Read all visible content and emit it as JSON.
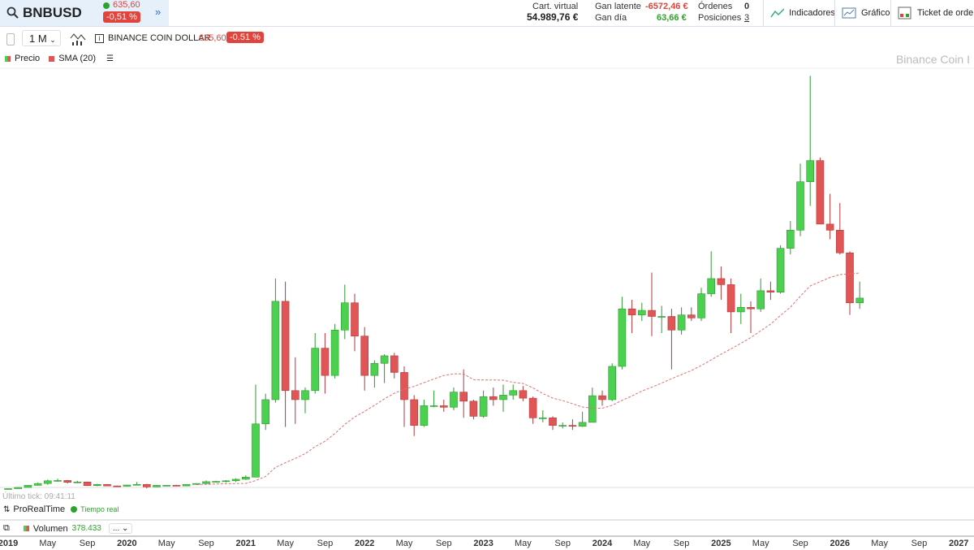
{
  "header": {
    "symbol": "BNBUSD",
    "price": "635,60",
    "change": "-0,51 %",
    "cart_label": "Cart. virtual",
    "cart_value": "54.989,76 €",
    "latent_label": "Gan latente",
    "latent_value": "-6572,46 €",
    "day_label": "Gan día",
    "day_value": "63,66 €",
    "orders_label": "Órdenes",
    "orders_value": "0",
    "positions_label": "Posiciones",
    "positions_value": "3",
    "buttons": [
      "Indicadores",
      "Gráfico",
      "Ticket de orden"
    ]
  },
  "toolbar": {
    "period": "1 M",
    "instrument": "BINANCE COIN DOLLAR",
    "price": "635,60",
    "change": "-0.51 %"
  },
  "footer": {
    "last_tick": "Último tick: 09:41:11",
    "provider": "ProRealTime",
    "realtime": "Tiempo real",
    "volume_label": "Volumen",
    "volume_value": "378.433",
    "more": "..."
  },
  "chart_data": {
    "type": "candlestick",
    "price_name": "Precio",
    "watermark": "Binance Coin I",
    "up_color": "#4cd04f",
    "down_color": "#e05656",
    "ylim": [
      10,
      1395
    ],
    "open": [
      6,
      6,
      10,
      17,
      23,
      32,
      33,
      27,
      28,
      16,
      20,
      15,
      14,
      18,
      20,
      12,
      17,
      17,
      15,
      20,
      23,
      29,
      30,
      32,
      37,
      44,
      220,
      300,
      625,
      330,
      300,
      330,
      470,
      380,
      530,
      620,
      510,
      380,
      420,
      445,
      390,
      300,
      215,
      280,
      280,
      275,
      325,
      295,
      245,
      310,
      300,
      315,
      330,
      305,
      240,
      240,
      215,
      215,
      212,
      225,
      313,
      300,
      410,
      600,
      580,
      595,
      575,
      575,
      530,
      580,
      570,
      650,
      700,
      680,
      590,
      605,
      600,
      660,
      655,
      800,
      860,
      1020,
      1090,
      880,
      860,
      785,
      620
    ],
    "high": [
      7,
      11,
      18,
      26,
      36,
      39,
      35,
      32,
      29,
      22,
      21,
      16,
      19,
      28,
      22,
      18,
      18,
      19,
      20,
      24,
      33,
      32,
      34,
      40,
      50,
      350,
      320,
      700,
      690,
      440,
      340,
      520,
      520,
      550,
      680,
      650,
      540,
      430,
      450,
      455,
      410,
      315,
      300,
      330,
      300,
      340,
      400,
      300,
      330,
      340,
      350,
      350,
      345,
      310,
      265,
      245,
      225,
      235,
      260,
      340,
      330,
      420,
      640,
      630,
      620,
      720,
      610,
      600,
      605,
      605,
      670,
      790,
      740,
      700,
      650,
      625,
      700,
      690,
      810,
      890,
      1080,
      1370,
      1100,
      980,
      950,
      790,
      690
    ],
    "low": [
      4,
      6,
      10,
      16,
      19,
      29,
      23,
      24,
      15,
      14,
      14,
      13,
      13,
      18,
      7,
      11,
      15,
      15,
      15,
      20,
      22,
      27,
      26,
      28,
      35,
      44,
      200,
      290,
      210,
      220,
      255,
      320,
      320,
      370,
      500,
      460,
      330,
      340,
      355,
      370,
      210,
      180,
      210,
      275,
      260,
      265,
      240,
      235,
      240,
      280,
      260,
      300,
      295,
      220,
      225,
      200,
      205,
      200,
      210,
      225,
      280,
      295,
      400,
      520,
      560,
      510,
      520,
      400,
      515,
      560,
      560,
      640,
      630,
      520,
      550,
      520,
      590,
      630,
      650,
      780,
      840,
      940,
      880,
      830,
      780,
      580,
      600
    ],
    "close": [
      6,
      10,
      17,
      23,
      32,
      33,
      27,
      28,
      16,
      20,
      15,
      14,
      18,
      20,
      12,
      17,
      17,
      15,
      20,
      23,
      29,
      30,
      32,
      37,
      44,
      220,
      300,
      625,
      330,
      300,
      330,
      470,
      380,
      530,
      620,
      510,
      380,
      420,
      445,
      390,
      300,
      215,
      280,
      280,
      275,
      325,
      295,
      245,
      310,
      300,
      315,
      330,
      305,
      240,
      240,
      215,
      215,
      212,
      225,
      313,
      300,
      410,
      600,
      580,
      595,
      575,
      575,
      530,
      580,
      570,
      650,
      700,
      680,
      590,
      605,
      600,
      660,
      655,
      800,
      860,
      1020,
      1090,
      880,
      860,
      785,
      620,
      635.6
    ],
    "sma": {
      "name": "SMA (20)",
      "color": "#e07070",
      "values": [
        null,
        null,
        null,
        null,
        null,
        null,
        null,
        null,
        null,
        null,
        null,
        null,
        null,
        null,
        null,
        null,
        null,
        null,
        null,
        19.2,
        20.3,
        21.3,
        22.1,
        22.8,
        23.4,
        32.7,
        46.4,
        76.2,
        91.9,
        105.9,
        121.7,
        144.5,
        162.6,
        188.1,
        218.5,
        243.1,
        261.3,
        281.5,
        302.8,
        321.1,
        334.7,
        343.9,
        356.3,
        368.5,
        380,
        385.3,
        385,
        366,
        365,
        365,
        364.3,
        357.3,
        353.5,
        339,
        320,
        305.3,
        297,
        286.6,
        275.6,
        271.8,
        271.8,
        281.5,
        297.5,
        312.5,
        328.5,
        341,
        355,
        369.3,
        382.8,
        396.3,
        413,
        431.5,
        450.3,
        467.8,
        486,
        505.3,
        527.5,
        549.7,
        578.4,
        605.8,
        641.8,
        675.8,
        689.8,
        703.8,
        713.3,
        715.5,
        718.5
      ]
    },
    "x_labels": [
      "2019",
      "May",
      "Sep",
      "2020",
      "May",
      "Sep",
      "2021",
      "May",
      "Sep",
      "2022",
      "May",
      "Sep",
      "2023",
      "May",
      "Sep",
      "2024",
      "May",
      "Sep",
      "2025",
      "May",
      "Sep",
      "2026",
      "May",
      "Sep",
      "2027"
    ]
  }
}
